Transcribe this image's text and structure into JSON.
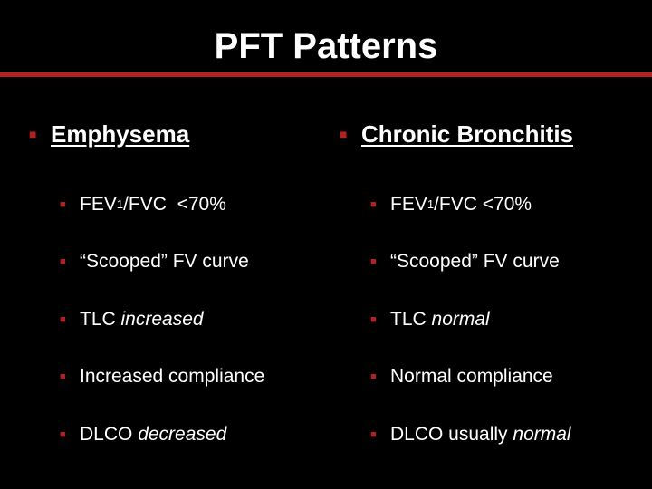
{
  "slide": {
    "title": "PFT Patterns"
  },
  "colors": {
    "background": "#000000",
    "text": "#ffffff",
    "accent": "#b22222"
  },
  "bullet_icon": "square-bullet-icon",
  "columns": [
    {
      "heading": "Emphysema",
      "items": [
        {
          "pre": "FEV",
          "sub": "1",
          "post": "/FVC  <70%",
          "em": ""
        },
        {
          "pre": "“Scooped” FV curve",
          "sub": "",
          "post": "",
          "em": ""
        },
        {
          "pre": "TLC ",
          "sub": "",
          "post": "",
          "em": "increased"
        },
        {
          "pre": "Increased compliance",
          "sub": "",
          "post": "",
          "em": ""
        },
        {
          "pre": "DLCO ",
          "sub": "",
          "post": "",
          "em": "decreased"
        }
      ]
    },
    {
      "heading": "Chronic Bronchitis",
      "items": [
        {
          "pre": "FEV",
          "sub": "1",
          "post": "/FVC <70%",
          "em": ""
        },
        {
          "pre": "“Scooped” FV curve",
          "sub": "",
          "post": "",
          "em": ""
        },
        {
          "pre": "TLC ",
          "sub": "",
          "post": "",
          "em": "normal"
        },
        {
          "pre": "Normal compliance",
          "sub": "",
          "post": "",
          "em": ""
        },
        {
          "pre": "DLCO usually ",
          "sub": "",
          "post": "",
          "em": "normal"
        }
      ]
    }
  ]
}
